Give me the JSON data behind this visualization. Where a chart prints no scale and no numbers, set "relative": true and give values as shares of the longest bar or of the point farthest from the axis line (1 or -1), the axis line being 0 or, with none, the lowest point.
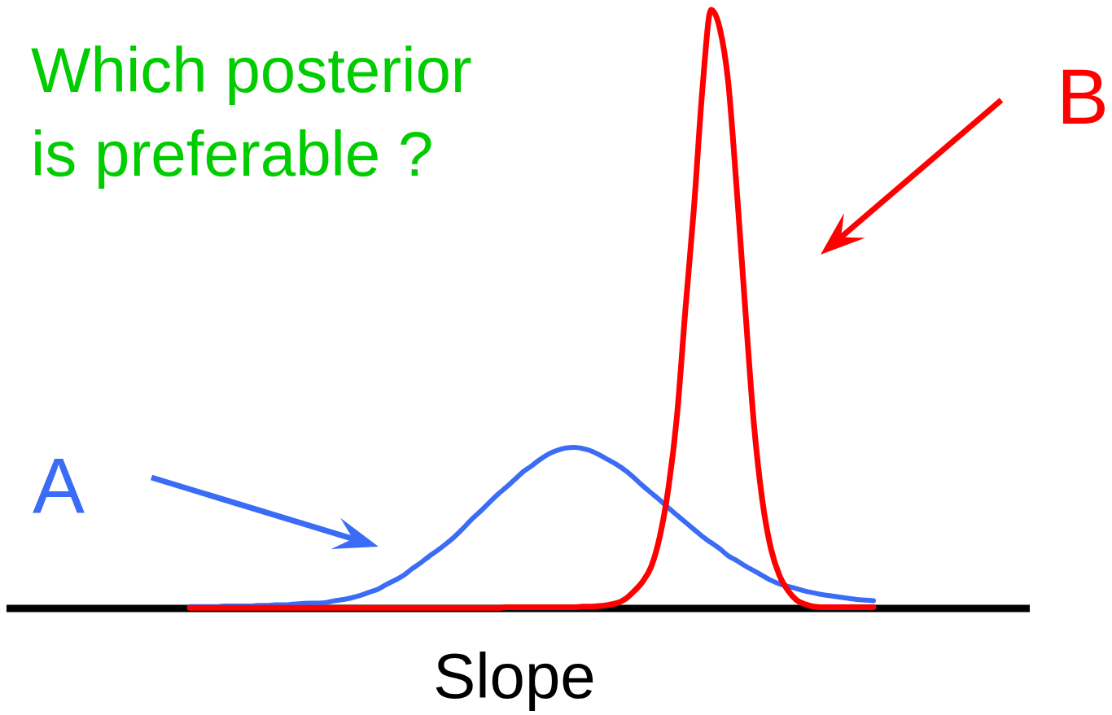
{
  "chart_data": {
    "type": "line",
    "relative": true,
    "title": "Which posterior is preferable ?",
    "xlabel": "Slope",
    "categories": [
      null,
      null,
      null,
      null,
      null,
      null,
      null,
      null,
      null,
      null,
      null,
      null,
      null,
      null,
      null,
      null,
      null,
      null,
      null,
      null,
      null,
      null,
      null,
      null,
      null,
      null,
      null,
      null,
      null,
      null,
      null,
      null,
      null,
      null,
      null,
      null,
      null,
      null,
      null,
      null,
      null,
      null,
      null,
      null,
      null,
      null,
      null,
      null,
      null,
      null,
      null,
      null,
      null,
      null,
      null,
      null,
      null,
      null,
      null,
      null,
      null,
      null,
      null,
      null,
      null,
      null,
      null,
      null,
      null,
      null,
      null,
      null,
      null,
      null,
      null,
      null,
      null,
      null,
      null,
      null,
      null
    ],
    "series": [
      {
        "name": "A",
        "color": "#3b6cf6",
        "values": [
          0.003,
          0.003,
          0.003,
          0.003,
          0.004,
          0.004,
          0.004,
          0.004,
          0.005,
          0.005,
          0.006,
          0.006,
          0.007,
          0.008,
          0.009,
          0.009,
          0.01,
          0.013,
          0.015,
          0.018,
          0.022,
          0.027,
          0.032,
          0.04,
          0.047,
          0.055,
          0.066,
          0.076,
          0.087,
          0.097,
          0.108,
          0.12,
          0.134,
          0.149,
          0.162,
          0.176,
          0.19,
          0.202,
          0.215,
          0.228,
          0.238,
          0.249,
          0.258,
          0.264,
          0.268,
          0.269,
          0.267,
          0.263,
          0.256,
          0.248,
          0.24,
          0.23,
          0.218,
          0.205,
          0.193,
          0.181,
          0.168,
          0.156,
          0.144,
          0.132,
          0.12,
          0.11,
          0.1,
          0.088,
          0.08,
          0.071,
          0.063,
          0.055,
          0.047,
          0.041,
          0.037,
          0.033,
          0.029,
          0.026,
          0.023,
          0.021,
          0.019,
          0.017,
          0.015,
          0.014,
          0.013
        ]
      },
      {
        "name": "B",
        "color": "#ff0000",
        "values": [
          0.001,
          0.001,
          0.001,
          0.001,
          0.001,
          0.001,
          0.001,
          0.001,
          0.001,
          0.001,
          0.001,
          0.001,
          0.001,
          0.001,
          0.001,
          0.001,
          0.001,
          0.001,
          0.001,
          0.001,
          0.001,
          0.001,
          0.001,
          0.001,
          0.001,
          0.001,
          0.001,
          0.001,
          0.001,
          0.001,
          0.001,
          0.001,
          0.001,
          0.001,
          0.001,
          0.001,
          0.001,
          0.002,
          0.002,
          0.002,
          0.002,
          0.002,
          0.002,
          0.002,
          0.002,
          0.002,
          0.003,
          0.003,
          0.004,
          0.006,
          0.009,
          0.016,
          0.029,
          0.045,
          0.07,
          0.12,
          0.2,
          0.32,
          0.5,
          0.67,
          0.87,
          1,
          0.97,
          0.88,
          0.7,
          0.5,
          0.31,
          0.18,
          0.1,
          0.055,
          0.03,
          0.014,
          0.007,
          0.003,
          0.002,
          0.002,
          0.002,
          0.002,
          0.002,
          0.002,
          0.002
        ]
      }
    ],
    "legend": "left"
  }
}
